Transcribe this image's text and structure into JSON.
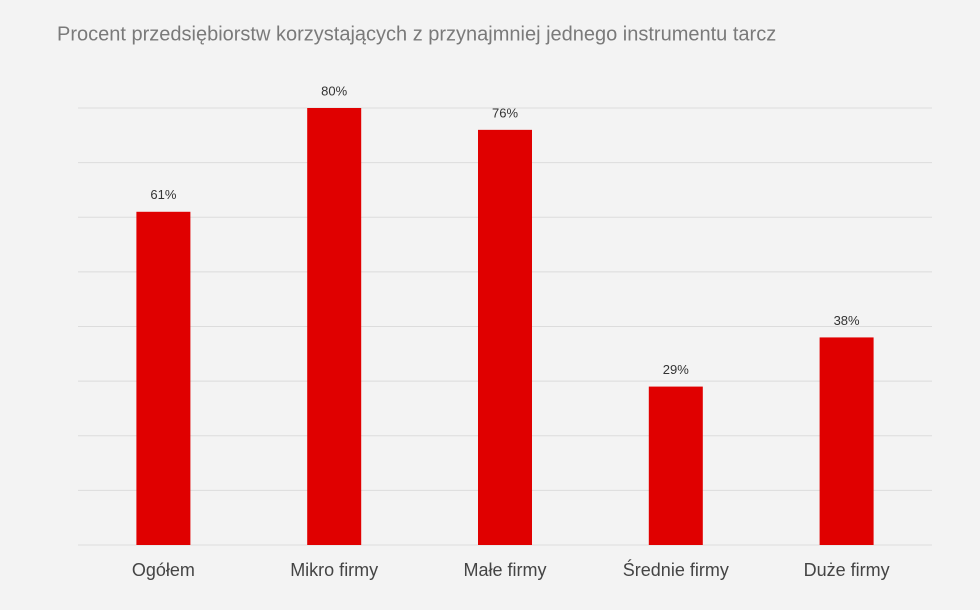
{
  "chart_data": {
    "type": "bar",
    "title": "Procent przedsiębiorstw korzystających z przynajmniej jednego instrumentu tarcz",
    "categories": [
      "Ogółem",
      "Mikro firmy",
      "Małe firmy",
      "Średnie firmy",
      "Duże firmy"
    ],
    "values": [
      61,
      80,
      76,
      29,
      38
    ],
    "value_labels": [
      "61%",
      "80%",
      "76%",
      "29%",
      "38%"
    ],
    "color": "#e00000",
    "ylim": [
      0,
      80
    ],
    "yticks": [
      0,
      10,
      20,
      30,
      40,
      50,
      60,
      70,
      80
    ],
    "grid": true
  }
}
